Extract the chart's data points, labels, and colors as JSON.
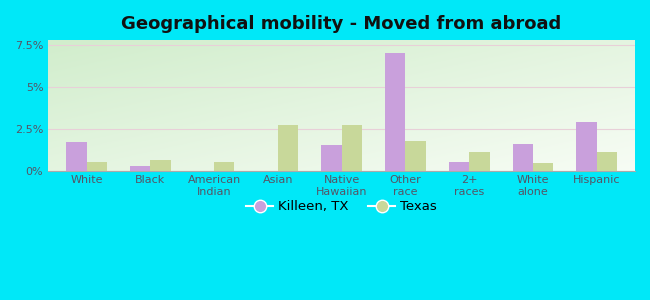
{
  "title": "Geographical mobility - Moved from abroad",
  "categories": [
    "White",
    "Black",
    "American\nIndian",
    "Asian",
    "Native\nHawaiian",
    "Other\nrace",
    "2+\nraces",
    "White\nalone",
    "Hispanic"
  ],
  "killeen_values": [
    1.7,
    0.3,
    0.0,
    0.0,
    1.5,
    7.0,
    0.5,
    1.6,
    2.9
  ],
  "texas_values": [
    0.5,
    0.65,
    0.5,
    2.75,
    2.75,
    1.75,
    1.1,
    0.45,
    1.1
  ],
  "killeen_color": "#c9a0dc",
  "texas_color": "#c8d89a",
  "ylim": [
    0,
    7.8
  ],
  "ytick_vals": [
    0,
    2.5,
    5.0,
    7.5
  ],
  "ytick_labels": [
    "0%",
    "2.5%",
    "5%",
    "7.5%"
  ],
  "legend_killeen": "Killeen, TX",
  "legend_texas": "Texas",
  "bg_outer": "#00e8f8",
  "bar_width": 0.32,
  "title_fontsize": 13,
  "tick_fontsize": 8,
  "legend_fontsize": 9.5,
  "grid_color": "#e8c8d8",
  "grid_color_h": "#dddddd",
  "plot_bg": "#e6f2e0"
}
